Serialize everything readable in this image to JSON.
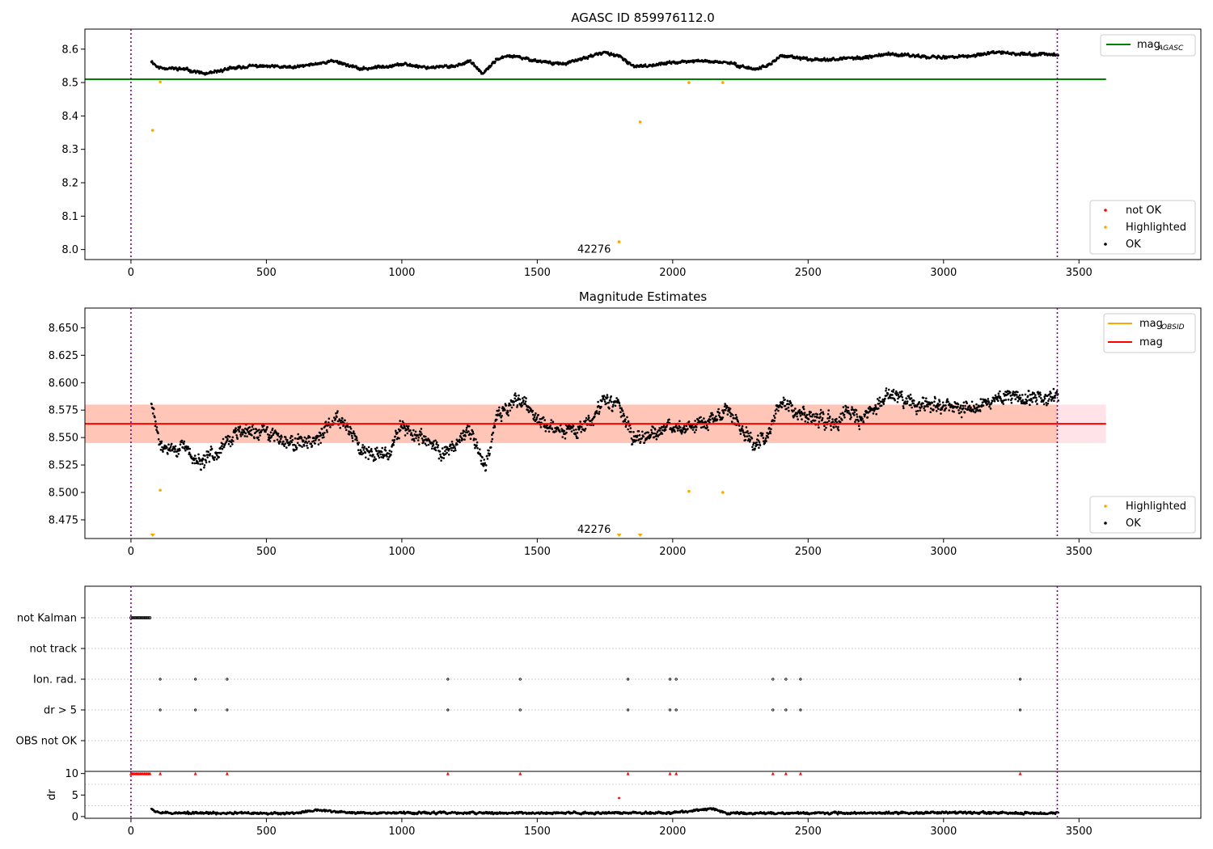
{
  "colors": {
    "ok": "#000000",
    "highlighted": "#ffa500",
    "not_ok": "#ff0000",
    "mag_agasc": "#008000",
    "mag_obsid": "#ffa500",
    "mag": "#ff0000",
    "band_outer": "#ffc0cb",
    "band_inner": "#ffa07a",
    "vline": "#800080"
  },
  "chart_data": [
    {
      "type": "scatter",
      "title": "AGASC ID 859976112.0",
      "xlim": [
        -170,
        3950
      ],
      "ylim": [
        7.97,
        8.66
      ],
      "xticks": [
        0,
        500,
        1000,
        1500,
        2000,
        2500,
        3000,
        3500
      ],
      "xtick_labels": [
        "0",
        "500",
        "1000",
        "1500",
        "2000",
        "2500",
        "3000",
        "3500"
      ],
      "yticks": [
        8.0,
        8.1,
        8.2,
        8.3,
        8.4,
        8.5,
        8.6
      ],
      "ytick_labels": [
        "8.0",
        "8.1",
        "8.2",
        "8.3",
        "8.4",
        "8.5",
        "8.6"
      ],
      "vlines": [
        0,
        3420
      ],
      "obsid_annotation": {
        "x": 1710,
        "y": 7.99,
        "text": "42276"
      },
      "ok_trace": {
        "x_range": [
          75,
          3425
        ],
        "knots_x": [
          75,
          100,
          200,
          280,
          350,
          450,
          600,
          750,
          850,
          1000,
          1100,
          1200,
          1250,
          1300,
          1350,
          1400,
          1500,
          1600,
          1700,
          1750,
          1800,
          1850,
          1900,
          2000,
          2100,
          2200,
          2250,
          2300,
          2350,
          2400,
          2500,
          2600,
          2700,
          2800,
          2900,
          3000,
          3100,
          3200,
          3300,
          3425
        ],
        "knots_y": [
          8.565,
          8.545,
          8.54,
          8.525,
          8.54,
          8.55,
          8.545,
          8.565,
          8.54,
          8.555,
          8.545,
          8.55,
          8.565,
          8.525,
          8.57,
          8.58,
          8.565,
          8.555,
          8.58,
          8.59,
          8.58,
          8.55,
          8.55,
          8.56,
          8.565,
          8.56,
          8.55,
          8.54,
          8.55,
          8.58,
          8.57,
          8.57,
          8.575,
          8.585,
          8.58,
          8.575,
          8.58,
          8.59,
          8.585,
          8.585
        ],
        "scatter": 0.006
      },
      "highlighted_points": [
        {
          "x": 80,
          "y": 8.357
        },
        {
          "x": 108,
          "y": 8.502
        },
        {
          "x": 1802,
          "y": 8.023
        },
        {
          "x": 1880,
          "y": 8.382
        },
        {
          "x": 2060,
          "y": 8.5
        },
        {
          "x": 2185,
          "y": 8.5
        }
      ],
      "lines": [
        {
          "name": "mag",
          "name_sub": "AGASC",
          "y": 8.51,
          "x_range": [
            -170,
            3600
          ]
        }
      ],
      "legends": [
        {
          "entries": [
            {
              "kind": "line",
              "label": "mag",
              "sub": "AGASC"
            }
          ]
        },
        {
          "entries": [
            {
              "kind": "dot",
              "label": "not OK"
            },
            {
              "kind": "dot",
              "label": "Highlighted"
            },
            {
              "kind": "dot",
              "label": "OK"
            }
          ]
        }
      ]
    },
    {
      "type": "scatter",
      "title": "Magnitude Estimates",
      "xlim": [
        -170,
        3950
      ],
      "ylim": [
        8.458,
        8.668
      ],
      "xticks": [
        0,
        500,
        1000,
        1500,
        2000,
        2500,
        3000,
        3500
      ],
      "xtick_labels": [
        "0",
        "500",
        "1000",
        "1500",
        "2000",
        "2500",
        "3000",
        "3500"
      ],
      "yticks": [
        8.475,
        8.5,
        8.525,
        8.55,
        8.575,
        8.6,
        8.625,
        8.65
      ],
      "ytick_labels": [
        "8.475",
        "8.500",
        "8.525",
        "8.550",
        "8.575",
        "8.600",
        "8.625",
        "8.650"
      ],
      "vlines": [
        0,
        3420
      ],
      "obsid_annotation": {
        "x": 1710,
        "y": 8.463,
        "text": "42276"
      },
      "band_outer": {
        "y_range": [
          8.545,
          8.58
        ],
        "x_range": [
          -170,
          3600
        ]
      },
      "band_inner": {
        "y_range": [
          8.545,
          8.58
        ],
        "x_range": [
          -170,
          3420
        ]
      },
      "mag_line": {
        "y": 8.5625,
        "x_range": [
          -170,
          3600
        ]
      },
      "highlighted_points": [
        {
          "x": 108,
          "y": 8.502
        },
        {
          "x": 2060,
          "y": 8.501
        },
        {
          "x": 2185,
          "y": 8.5
        }
      ],
      "highlighted_markers": [
        {
          "x": 80,
          "y": 8.458
        },
        {
          "x": 1802,
          "y": 8.458
        },
        {
          "x": 1880,
          "y": 8.458
        }
      ],
      "ok_trace": {
        "x_range": [
          75,
          3425
        ],
        "knots_x": [
          75,
          90,
          110,
          200,
          260,
          300,
          400,
          500,
          600,
          700,
          760,
          800,
          850,
          950,
          1000,
          1100,
          1150,
          1250,
          1290,
          1310,
          1350,
          1400,
          1450,
          1500,
          1550,
          1650,
          1700,
          1750,
          1800,
          1850,
          1900,
          2000,
          2050,
          2150,
          2200,
          2250,
          2300,
          2350,
          2400,
          2450,
          2500,
          2600,
          2650,
          2700,
          2750,
          2800,
          2900,
          3000,
          3100,
          3200,
          3250,
          3300,
          3425
        ],
        "knots_y": [
          8.58,
          8.565,
          8.54,
          8.54,
          8.525,
          8.535,
          8.555,
          8.555,
          8.545,
          8.55,
          8.57,
          8.56,
          8.54,
          8.535,
          8.56,
          8.545,
          8.535,
          8.555,
          8.535,
          8.525,
          8.57,
          8.58,
          8.585,
          8.565,
          8.56,
          8.555,
          8.565,
          8.585,
          8.58,
          8.55,
          8.55,
          8.56,
          8.56,
          8.565,
          8.575,
          8.56,
          8.545,
          8.55,
          8.585,
          8.575,
          8.57,
          8.565,
          8.575,
          8.565,
          8.58,
          8.59,
          8.58,
          8.58,
          8.575,
          8.585,
          8.59,
          8.585,
          8.59
        ],
        "scatter": 0.009
      },
      "legends": [
        {
          "entries": [
            {
              "kind": "line",
              "label": "mag",
              "sub": "OBSID",
              "color": "mag_obsid"
            },
            {
              "kind": "line",
              "label": "mag",
              "color": "mag"
            }
          ]
        },
        {
          "entries": [
            {
              "kind": "dot",
              "label": "Highlighted"
            },
            {
              "kind": "dot",
              "label": "OK"
            }
          ]
        }
      ]
    },
    {
      "type": "scatter",
      "title": "",
      "xlim": [
        -170,
        3950
      ],
      "categories": [
        "not Kalman",
        "not track",
        "Ion. rad.",
        "dr > 5",
        "OBS not OK"
      ],
      "not_kalman_x_range": [
        0,
        70
      ],
      "not_kalman_step": 5,
      "ion_rad_x": [
        108,
        238,
        355,
        1170,
        1437,
        1835,
        1990,
        2013,
        2370,
        2418,
        2472,
        3283
      ],
      "dr_gt5_x": [
        108,
        238,
        355,
        1170,
        1437,
        1835,
        1990,
        2013,
        2370,
        2418,
        2472,
        3283
      ],
      "vlines": [
        0,
        3420
      ]
    },
    {
      "type": "scatter",
      "title": "",
      "ylabel": "dr",
      "xlim": [
        -170,
        3950
      ],
      "ylim": [
        -0.4,
        10.5
      ],
      "yticks": [
        0,
        5,
        10
      ],
      "ytick_labels": [
        "0",
        "5",
        "10"
      ],
      "xticks": [
        0,
        500,
        1000,
        1500,
        2000,
        2500,
        3000,
        3500
      ],
      "xtick_labels": [
        "0",
        "500",
        "1000",
        "1500",
        "2000",
        "2500",
        "3000",
        "3500"
      ],
      "vlines": [
        0,
        3420
      ],
      "clipped_x_range": [
        0,
        70
      ],
      "clipped_step": 5,
      "clipped_x": [
        108,
        238,
        355,
        1170,
        1437,
        1835,
        1990,
        2013,
        2370,
        2418,
        2472,
        3283
      ],
      "clipped_y": 10,
      "outlier": {
        "x": 1802,
        "y": 4.3
      },
      "ok_trace": {
        "x_range": [
          75,
          3425
        ],
        "knots_x": [
          75,
          90,
          150,
          600,
          690,
          800,
          1500,
          2000,
          2150,
          2200,
          2500,
          3000,
          3425
        ],
        "knots_y": [
          2.0,
          1.2,
          0.8,
          0.8,
          1.5,
          0.9,
          0.8,
          0.9,
          1.8,
          0.8,
          0.8,
          0.9,
          0.8
        ],
        "scatter": 0.35
      }
    }
  ]
}
